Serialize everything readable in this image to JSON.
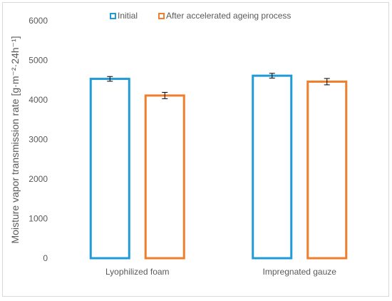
{
  "chart_data": {
    "type": "bar",
    "title": "",
    "xlabel": "",
    "ylabel": "Moisture vapor transmission rate [g·m⁻²·24h⁻¹]",
    "ylim": [
      0,
      6000
    ],
    "yticks": [
      "0",
      "1000",
      "2000",
      "3000",
      "4000",
      "5000",
      "6000"
    ],
    "grid": false,
    "legend_position": "top",
    "categories": [
      "Lyophilized foam",
      "Impregnated gauze"
    ],
    "series": [
      {
        "name": "Initial",
        "values": [
          4530,
          4610
        ],
        "errors": [
          60,
          60
        ],
        "color": "#1f9bd7"
      },
      {
        "name": "After accelerated ageing process",
        "values": [
          4110,
          4460
        ],
        "errors": [
          80,
          80
        ],
        "color": "#f07f2d"
      }
    ]
  }
}
